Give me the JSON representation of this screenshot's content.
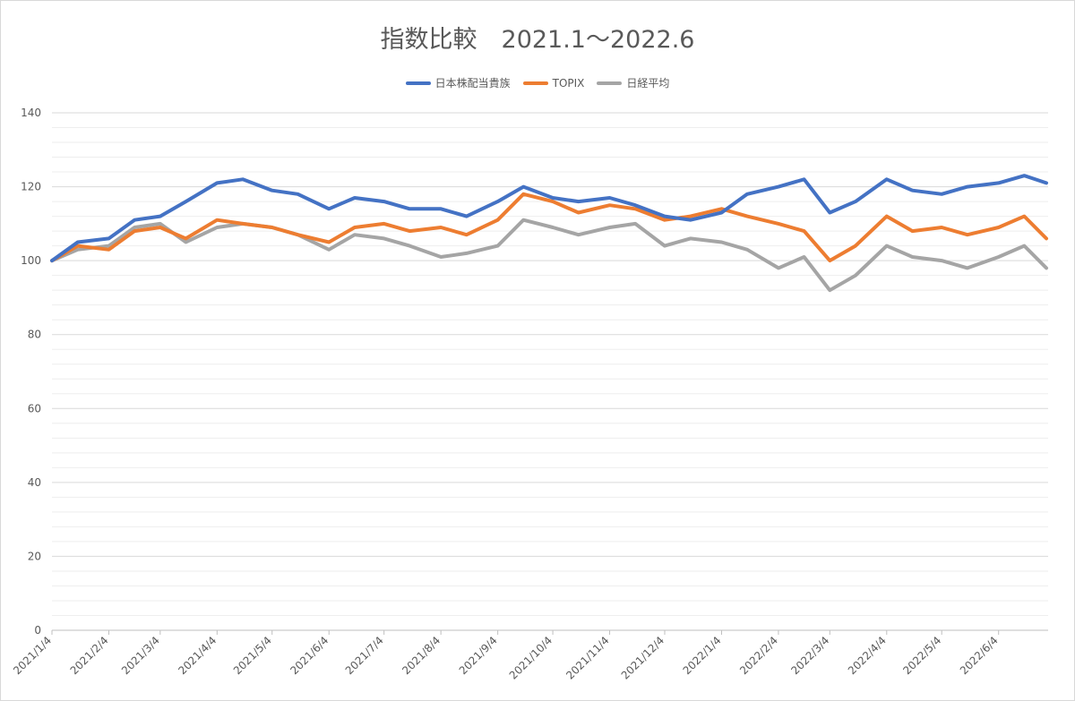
{
  "chart_data": {
    "type": "line",
    "title": "指数比較　2021.1～2022.6",
    "xlabel": "",
    "ylabel": "",
    "ylim": [
      0,
      140
    ],
    "yticks": [
      0,
      20,
      40,
      60,
      80,
      100,
      120,
      140
    ],
    "x_tick_labels": [
      "2021/1/4",
      "2021/2/4",
      "2021/3/4",
      "2021/4/4",
      "2021/5/4",
      "2021/6/4",
      "2021/7/4",
      "2021/8/4",
      "2021/9/4",
      "2021/10/4",
      "2021/11/4",
      "2021/12/4",
      "2022/1/4",
      "2022/2/4",
      "2022/3/4",
      "2022/4/4",
      "2022/5/4",
      "2022/6/4"
    ],
    "grid": true,
    "legend_position": "top",
    "colors": {
      "series1": "#4472C4",
      "series2": "#ED7D31",
      "series3": "#A5A5A5"
    },
    "x": [
      "2021/1/4",
      "2021/1/18",
      "2021/2/4",
      "2021/2/18",
      "2021/3/4",
      "2021/3/18",
      "2021/4/4",
      "2021/4/18",
      "2021/5/4",
      "2021/5/18",
      "2021/6/4",
      "2021/6/18",
      "2021/7/4",
      "2021/7/18",
      "2021/8/4",
      "2021/8/18",
      "2021/9/4",
      "2021/9/18",
      "2021/10/4",
      "2021/10/18",
      "2021/11/4",
      "2021/11/18",
      "2021/12/4",
      "2021/12/18",
      "2022/1/4",
      "2022/1/18",
      "2022/2/4",
      "2022/2/18",
      "2022/3/4",
      "2022/3/18",
      "2022/4/4",
      "2022/4/18",
      "2022/5/4",
      "2022/5/18",
      "2022/6/4",
      "2022/6/18",
      "2022/6/30"
    ],
    "series": [
      {
        "name": "日本株配当貴族",
        "values": [
          100,
          105,
          106,
          111,
          112,
          116,
          121,
          122,
          119,
          118,
          114,
          117,
          116,
          114,
          114,
          112,
          116,
          120,
          117,
          116,
          117,
          115,
          112,
          111,
          113,
          118,
          120,
          122,
          113,
          116,
          122,
          119,
          118,
          120,
          121,
          123,
          121
        ]
      },
      {
        "name": "TOPIX",
        "values": [
          100,
          104,
          103,
          108,
          109,
          106,
          111,
          110,
          109,
          107,
          105,
          109,
          110,
          108,
          109,
          107,
          111,
          118,
          116,
          113,
          115,
          114,
          111,
          112,
          114,
          112,
          110,
          108,
          100,
          104,
          112,
          108,
          109,
          107,
          109,
          112,
          106
        ]
      },
      {
        "name": "日経平均",
        "values": [
          100,
          103,
          104,
          109,
          110,
          105,
          109,
          110,
          109,
          107,
          103,
          107,
          106,
          104,
          101,
          102,
          104,
          111,
          109,
          107,
          109,
          110,
          104,
          106,
          105,
          103,
          98,
          101,
          92,
          96,
          104,
          101,
          100,
          98,
          101,
          104,
          98
        ]
      }
    ]
  }
}
